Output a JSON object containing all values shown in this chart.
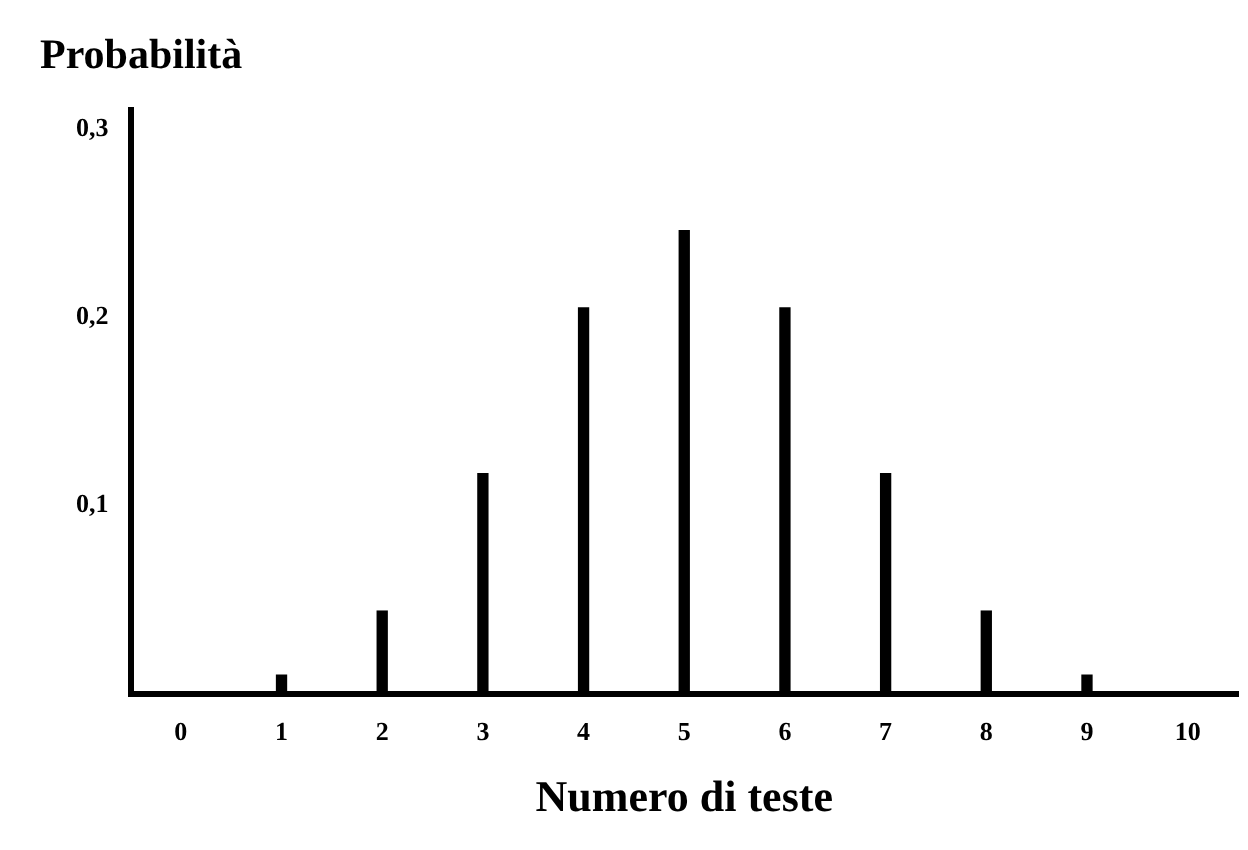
{
  "chart_data": {
    "type": "bar",
    "ylabel": "Probabilità",
    "xlabel": "Numero di teste",
    "categories": [
      "0",
      "1",
      "2",
      "3",
      "4",
      "5",
      "6",
      "7",
      "8",
      "9",
      "10"
    ],
    "values": [
      0.001,
      0.01,
      0.044,
      0.117,
      0.205,
      0.246,
      0.205,
      0.117,
      0.044,
      0.01,
      0.001
    ],
    "color": "#000000",
    "ylim": [
      0,
      0.31
    ],
    "yticks": [
      {
        "value": 0.1,
        "label": "0,1"
      },
      {
        "value": 0.2,
        "label": "0,2"
      },
      {
        "value": 0.3,
        "label": "0,3"
      }
    ],
    "grid": false,
    "legend": false
  }
}
